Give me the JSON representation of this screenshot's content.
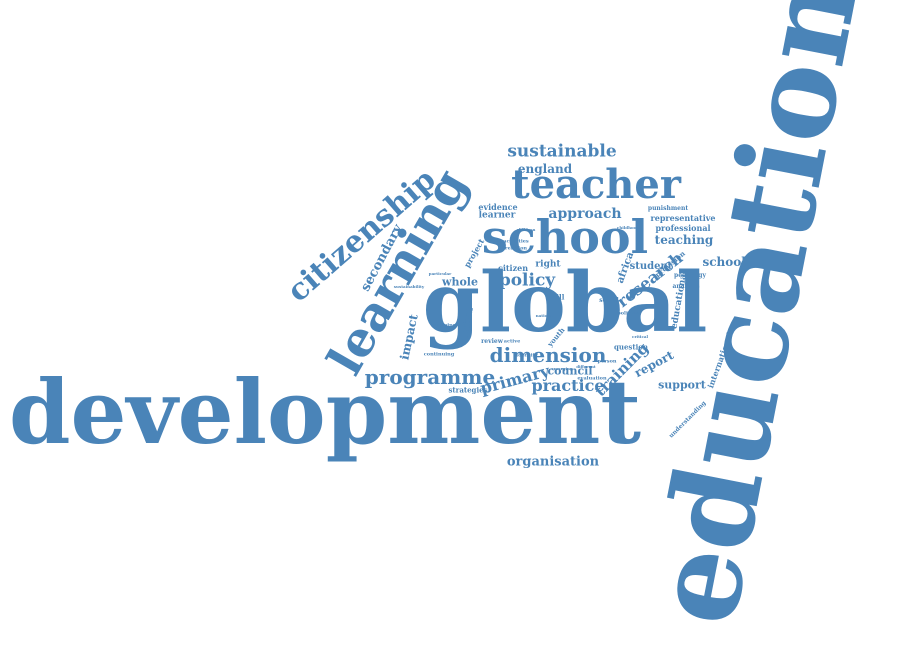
{
  "colors": {
    "word": "#4a84b8",
    "background": "#ffffff"
  },
  "words": {
    "education": "education",
    "development": "development",
    "global": "global",
    "school": "school",
    "teacher": "teacher",
    "learning": "learning",
    "citizenship": "citizenship",
    "dimension": "dimension",
    "programme": "programme",
    "sustainable": "sustainable",
    "research": "research",
    "policy": "policy",
    "secondary": "secondary",
    "primary": "primary",
    "practice": "practice",
    "training": "training",
    "approach": "approach",
    "england": "england",
    "organisation": "organisation",
    "council": "council",
    "teaching": "teaching",
    "schooling": "schooling",
    "report": "report",
    "support": "support",
    "impact": "impact",
    "whole": "whole",
    "citizen": "citizen",
    "learner": "learner",
    "right": "right",
    "student": "student",
    "professional": "professional",
    "representative": "representative",
    "initial": "initial",
    "educational": "educational",
    "international": "international",
    "evidence": "evidence",
    "africa": "africa",
    "project": "project",
    "strategies": "strategies",
    "understanding": "understanding",
    "question": "question",
    "punishment": "punishment",
    "pedagogy": "pedagogy",
    "provision": "provision",
    "analysis": "analysis",
    "skill": "skill",
    "social": "social",
    "youth": "youth",
    "review": "review",
    "active": "active",
    "identity": "identity",
    "person": "person",
    "evaluation": "evaluation",
    "mapping": "mapping",
    "continuing": "continuing",
    "sustainability": "sustainability",
    "activities": "activities",
    "relation": "relation",
    "particular": "particular",
    "policies": "policies",
    "children": "children",
    "childhood": "childhood",
    "emerging": "emerging",
    "different": "different",
    "national": "national",
    "critical": "critical"
  }
}
